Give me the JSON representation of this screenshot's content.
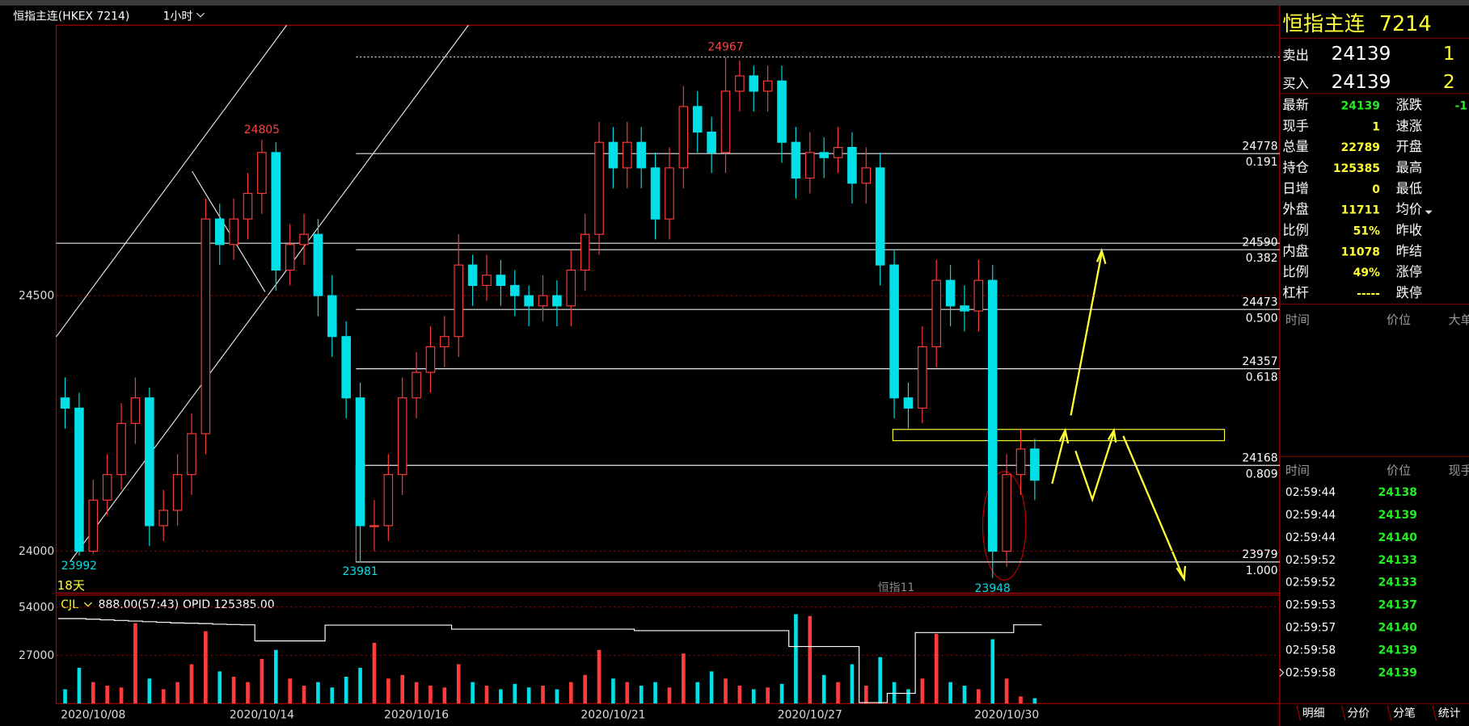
{
  "title_bar": {
    "symbol": "恒指主连(HKEX 7214)",
    "period": "1小时"
  },
  "chart_data": {
    "type": "candlestick",
    "categories": [
      null,
      null,
      "2020/10/08",
      null,
      null,
      null,
      null,
      null,
      null,
      null,
      null,
      null,
      null,
      null,
      "2020/10/14",
      null,
      null,
      null,
      null,
      null,
      null,
      null,
      null,
      null,
      null,
      "2020/10/16",
      null,
      null,
      null,
      null,
      null,
      null,
      null,
      null,
      null,
      null,
      null,
      null,
      null,
      "2020/10/21",
      null,
      null,
      null,
      null,
      null,
      null,
      null,
      null,
      null,
      null,
      null,
      null,
      null,
      "2020/10/27",
      null,
      null,
      null,
      null,
      null,
      null,
      null,
      null,
      null,
      null,
      null,
      null,
      null,
      "2020/10/30",
      null,
      null
    ],
    "open": [
      24300,
      24280,
      24000,
      24100,
      24150,
      24250,
      24300,
      24050,
      24080,
      24150,
      24230,
      24650,
      24600,
      24650,
      24700,
      24780,
      24550,
      24600,
      24620,
      24500,
      24420,
      24300,
      24050,
      24050,
      24150,
      24300,
      24350,
      24400,
      24420,
      24560,
      24520,
      24540,
      24520,
      24500,
      24480,
      24500,
      24480,
      24550,
      24620,
      24800,
      24750,
      24800,
      24750,
      24650,
      24750,
      24870,
      24820,
      24780,
      24900,
      24930,
      24900,
      24920,
      24800,
      24730,
      24780,
      24770,
      24790,
      24720,
      24750,
      24560,
      24300,
      24280,
      24400,
      24530,
      24480,
      24470,
      24530,
      24000,
      24150,
      24200
    ],
    "high": [
      24340,
      24310,
      24140,
      24190,
      24290,
      24340,
      24320,
      24120,
      24190,
      24270,
      24690,
      24680,
      24690,
      24740,
      24805,
      24800,
      24640,
      24660,
      24650,
      24540,
      24450,
      24330,
      24100,
      24190,
      24340,
      24390,
      24440,
      24460,
      24620,
      24580,
      24580,
      24570,
      24550,
      24520,
      24540,
      24530,
      24590,
      24660,
      24840,
      24830,
      24840,
      24830,
      24780,
      24790,
      24910,
      24900,
      24850,
      24967,
      24960,
      24950,
      24950,
      24950,
      24830,
      24820,
      24810,
      24830,
      24820,
      24790,
      24780,
      24590,
      24330,
      24440,
      24570,
      24560,
      24520,
      24570,
      24560,
      24190,
      24240,
      24220
    ],
    "low": [
      24240,
      23992,
      23995,
      24070,
      24120,
      24210,
      24010,
      24020,
      24050,
      24110,
      24190,
      24560,
      24570,
      24610,
      24660,
      24510,
      24520,
      24560,
      24460,
      24380,
      24260,
      23981,
      24000,
      24020,
      24110,
      24260,
      24310,
      24360,
      24380,
      24480,
      24490,
      24480,
      24460,
      24440,
      24450,
      24440,
      24440,
      24510,
      24580,
      24710,
      24710,
      24710,
      24610,
      24610,
      24710,
      24780,
      24740,
      24740,
      24860,
      24860,
      24860,
      24760,
      24690,
      24700,
      24730,
      24740,
      24680,
      24680,
      24520,
      24260,
      24240,
      24250,
      24360,
      24440,
      24430,
      24430,
      23948,
      23970,
      24110,
      24100
    ],
    "close": [
      24280,
      24000,
      24100,
      24150,
      24250,
      24300,
      24050,
      24080,
      24150,
      24230,
      24650,
      24600,
      24650,
      24700,
      24780,
      24550,
      24600,
      24620,
      24500,
      24420,
      24300,
      24050,
      24050,
      24150,
      24300,
      24350,
      24400,
      24420,
      24560,
      24520,
      24540,
      24520,
      24500,
      24480,
      24500,
      24480,
      24550,
      24620,
      24800,
      24750,
      24800,
      24750,
      24650,
      24750,
      24870,
      24820,
      24780,
      24900,
      24930,
      24900,
      24920,
      24800,
      24730,
      24780,
      24770,
      24790,
      24720,
      24750,
      24560,
      24300,
      24280,
      24400,
      24530,
      24480,
      24470,
      24530,
      24000,
      24150,
      24200,
      24139
    ],
    "colors": {
      "up": "#ff3b3b",
      "down": "#00e0e6"
    },
    "ylim": [
      23918,
      25029
    ],
    "yticks": [
      24000,
      24500
    ],
    "grid": true,
    "annotations": [
      {
        "value": 24805
      },
      {
        "value": 24967
      },
      {
        "value": 23992
      },
      {
        "value": 23981
      },
      {
        "value": 23948
      }
    ],
    "labels": [
      "18天",
      "恒指11"
    ],
    "fibonacci": [
      {
        "price": 24778,
        "ratio": 0.191
      },
      {
        "price": 24590,
        "ratio": 0.382
      },
      {
        "price": 24473,
        "ratio": {
          "value": 0.5,
          "label": "0.500"
        }
      },
      {
        "price": 24357,
        "ratio": 0.618
      },
      {
        "price": 24168,
        "ratio": 0.809
      },
      {
        "price": 23979,
        "ratio": {
          "value": 1,
          "label": "1.000"
        }
      }
    ],
    "volume": {
      "header": "CJL",
      "info": "888.00(57:43)",
      "opid_label": "OPID 125385.00",
      "values": [
        8000,
        20000,
        12000,
        10000,
        9000,
        45000,
        14000,
        8000,
        12000,
        22000,
        40500,
        18000,
        15000,
        12000,
        25000,
        30000,
        14000,
        10000,
        12000,
        9000,
        15000,
        20000,
        34000,
        14000,
        16000,
        12000,
        10000,
        9000,
        22000,
        12000,
        10000,
        8000,
        11000,
        9000,
        10000,
        8000,
        12000,
        16000,
        30000,
        14000,
        12000,
        10000,
        12000,
        9000,
        28000,
        12000,
        18000,
        14000,
        10000,
        8000,
        9000,
        11000,
        50000,
        49000,
        16000,
        12000,
        22000,
        10000,
        26000,
        12000,
        8000,
        14000,
        39000,
        12000,
        10000,
        8000,
        36000,
        14000,
        4000,
        3000
      ],
      "ylim": [
        0,
        60750
      ],
      "yticks": [
        54000,
        27000
      ],
      "opid": [
        127400,
        127400,
        127200,
        127000,
        126800,
        126600,
        126400,
        126200,
        126000,
        125900,
        125800,
        125600,
        125500,
        125400,
        120200,
        120200,
        120200,
        120200,
        120200,
        125300,
        125300,
        125300,
        125300,
        125300,
        125300,
        125300,
        125300,
        125300,
        124000,
        124000,
        124000,
        124000,
        124000,
        124000,
        124000,
        124000,
        124000,
        124000,
        124000,
        124000,
        124000,
        123500,
        123500,
        123500,
        123500,
        123500,
        123500,
        123500,
        123500,
        123500,
        123500,
        123500,
        118400,
        118400,
        118400,
        118400,
        118400,
        100300,
        100300,
        103300,
        103300,
        122900,
        122900,
        122900,
        122900,
        122900,
        122900,
        122900,
        125385,
        125385
      ],
      "y2lim": [
        100000,
        135000
      ]
    }
  },
  "quote": {
    "name": "恒指主连",
    "code": 7214,
    "sell": {
      "label": "卖出",
      "price": 24139,
      "qty": 1
    },
    "buy": {
      "label": "买入",
      "price": 24139,
      "qty": 2
    },
    "stats_left": [
      [
        "最新",
        24139
      ],
      [
        "现手",
        1
      ],
      [
        "总量",
        22789
      ],
      [
        "持仓",
        125385
      ],
      [
        "日增",
        0
      ],
      [
        "外盘",
        11711
      ],
      [
        "比例",
        "51%"
      ],
      [
        "内盘",
        11078
      ],
      [
        "比例",
        "49%"
      ],
      [
        "杠杆",
        "-----"
      ]
    ],
    "stats_right": [
      [
        "涨跌",
        "-1"
      ],
      [
        "速涨"
      ],
      [
        "开盘"
      ],
      [
        "最高"
      ],
      [
        "最低"
      ],
      [
        "均价"
      ],
      [
        "昨收"
      ],
      [
        "昨结"
      ],
      [
        "涨停"
      ],
      [
        "跌停"
      ]
    ],
    "big_header": [
      "时间",
      "价位",
      "大单"
    ],
    "trade_header": [
      "时间",
      "价位",
      "现手"
    ],
    "trades": [
      [
        "02:59:44",
        24138
      ],
      [
        "02:59:44",
        24139
      ],
      [
        "02:59:44",
        24140
      ],
      [
        "02:59:52",
        24133
      ],
      [
        "02:59:52",
        24133
      ],
      [
        "02:59:53",
        24137
      ],
      [
        "02:59:57",
        24140
      ],
      [
        "02:59:58",
        24139
      ],
      [
        "02:59:58",
        24139
      ]
    ],
    "tabs": [
      "明细",
      "分价",
      "分笔",
      "统计"
    ]
  }
}
